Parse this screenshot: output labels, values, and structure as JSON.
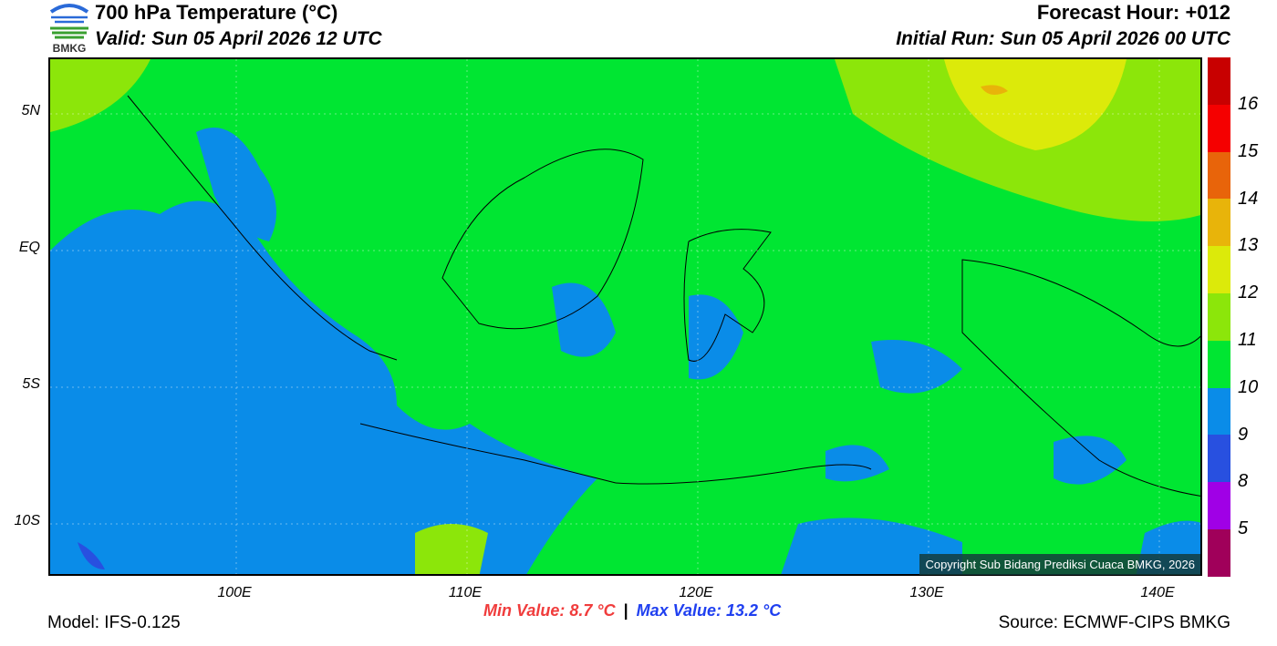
{
  "header": {
    "title": "700 hPa Temperature (°C)",
    "valid": "Valid: Sun 05 April 2026 12 UTC",
    "forecast_hour": "Forecast Hour: +012",
    "initial_run": "Initial Run: Sun 05 April 2026 00 UTC",
    "logo_text": "BMKG"
  },
  "map": {
    "lat_labels": [
      "5N",
      "EQ",
      "5S",
      "10S"
    ],
    "lon_labels": [
      "100E",
      "110E",
      "120E",
      "130E",
      "140E"
    ],
    "copyright": "Copyright Sub Bidang Prediksi Cuaca BMKG, 2026"
  },
  "legend": {
    "labels": [
      "16",
      "15",
      "14",
      "13",
      "12",
      "11",
      "10",
      "9",
      "8",
      "5"
    ],
    "colors": [
      "#c80000",
      "#f50000",
      "#e8640a",
      "#e8b40a",
      "#dcea0a",
      "#8ce60a",
      "#00e632",
      "#0a8ce8",
      "#2850e0",
      "#a000e6",
      "#a0005a"
    ]
  },
  "stats": {
    "min": "Min Value: 8.7 °C",
    "sep": "|",
    "max": "Max Value: 13.2 °C",
    "min_color": "#f03c3c",
    "max_color": "#2040f0"
  },
  "footer": {
    "model": "Model: IFS-0.125",
    "source": "Source: ECMWF-CIPS BMKG"
  }
}
